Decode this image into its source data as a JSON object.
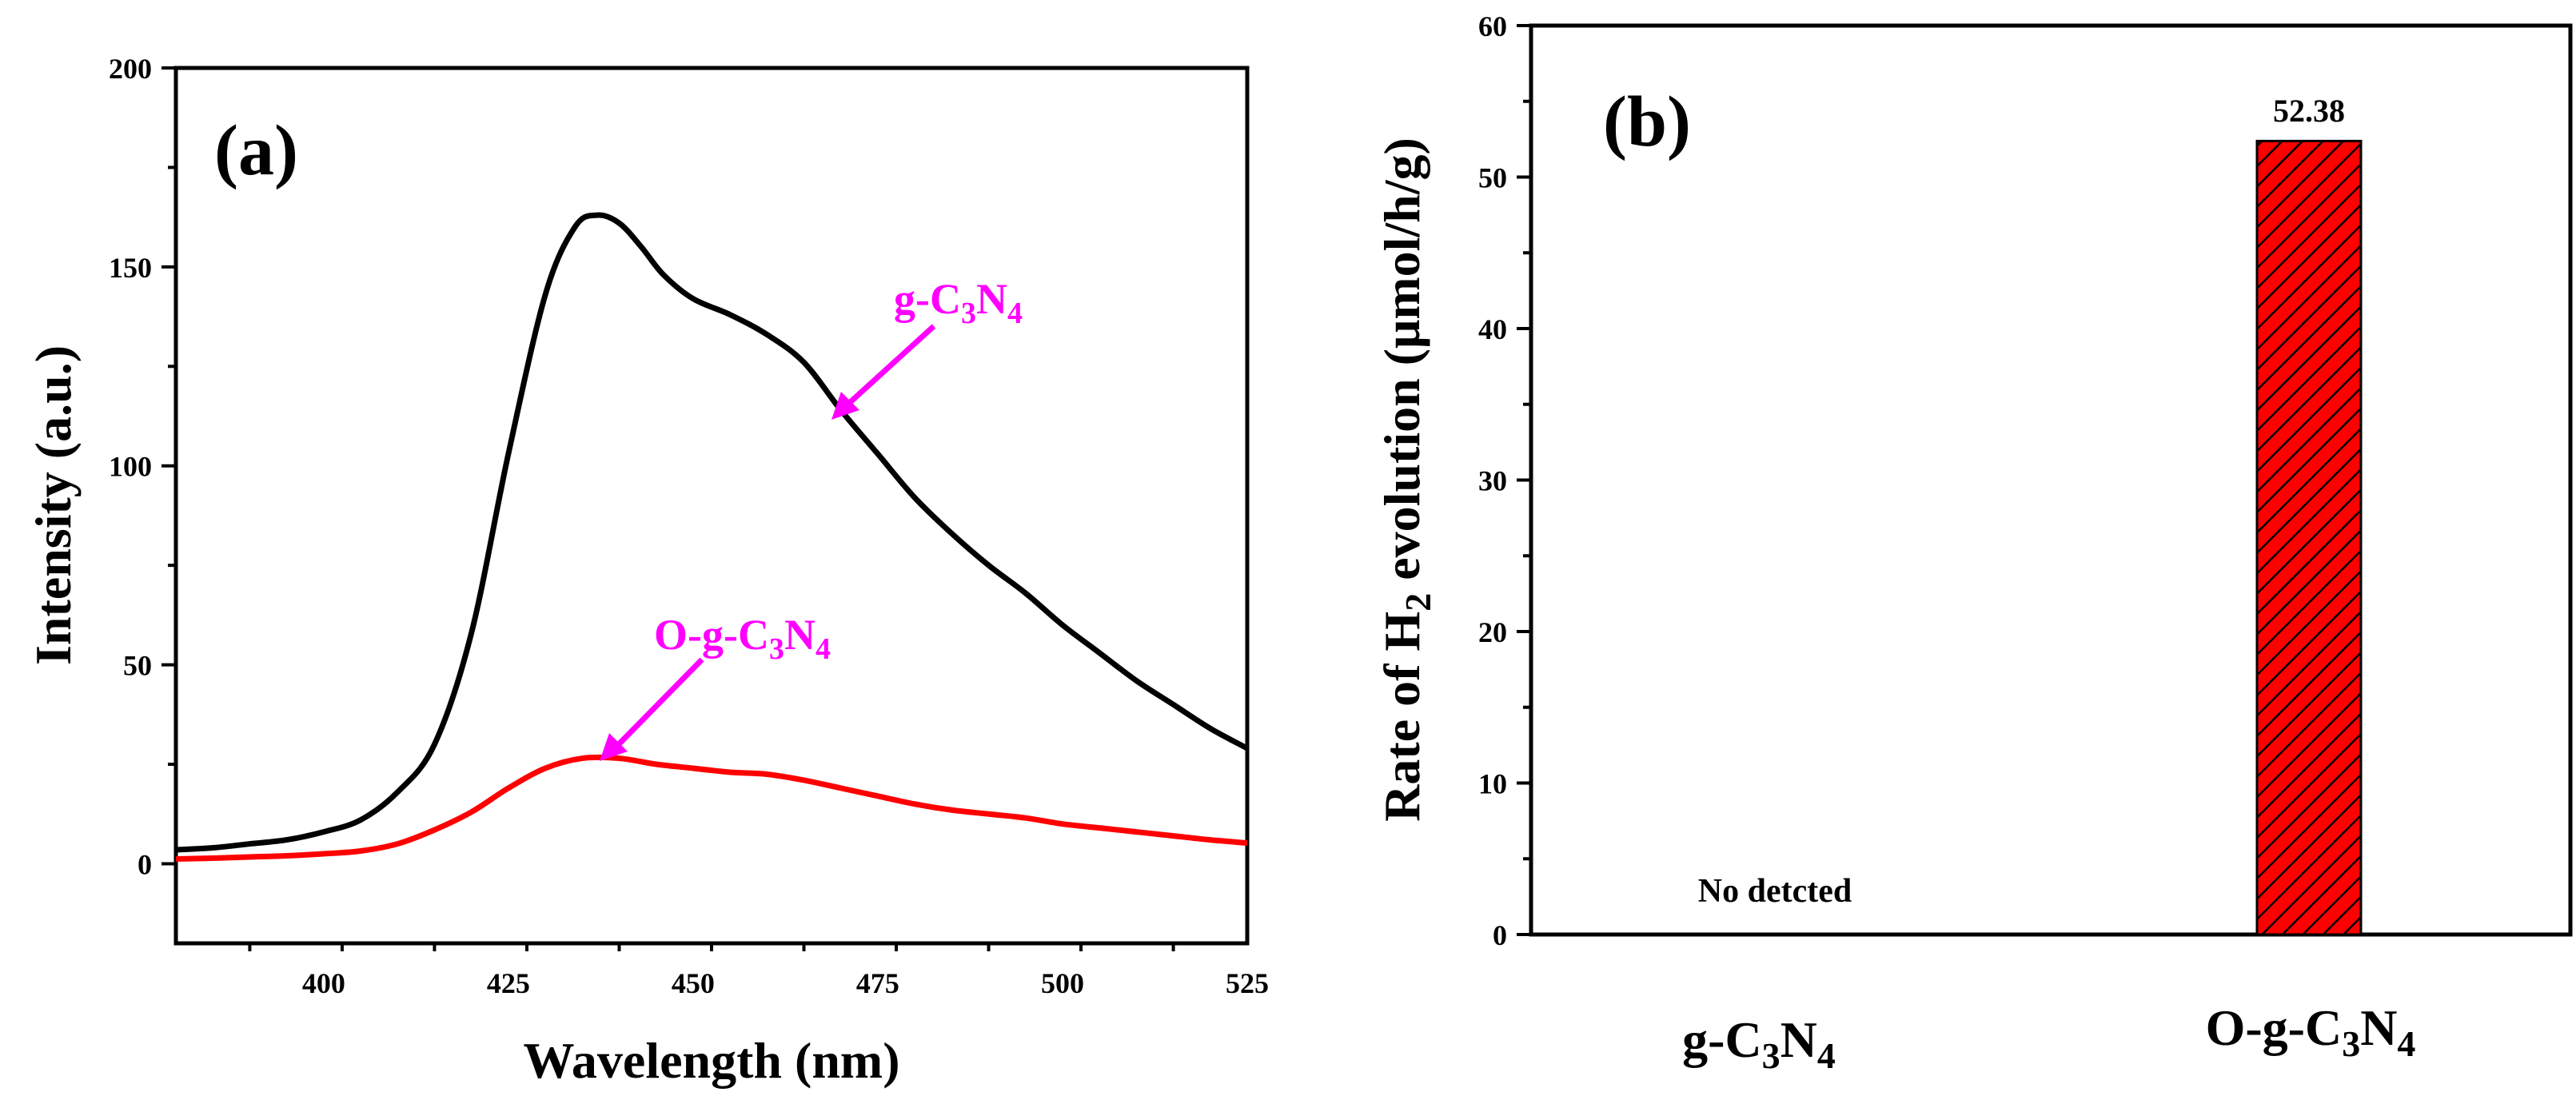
{
  "colors": {
    "axis": "#000000",
    "series_black": "#000000",
    "series_red": "#ff0000",
    "annotation": "#ff00ff",
    "bar_fill": "#ff0000",
    "bar_hatch": "#000000"
  },
  "panel_a": {
    "label": "(a)",
    "annotations": {
      "gc3n4": {
        "prefix": "g-C",
        "sub1": "3",
        "mid": "N",
        "sub2": "4"
      },
      "ogc3n4": {
        "prefix": "O-g-C",
        "sub1": "3",
        "mid": "N",
        "sub2": "4"
      }
    }
  },
  "panel_b": {
    "label": "(b)",
    "ylabel": {
      "pre": "Rate of H",
      "sub": "2",
      "post": " evolution (μmol/h/g)"
    },
    "categories": [
      {
        "prefix": "g-C",
        "sub1": "3",
        "mid": "N",
        "sub2": "4"
      },
      {
        "prefix": "O-g-C",
        "sub1": "3",
        "mid": "N",
        "sub2": "4"
      }
    ],
    "value_label": "52.38",
    "no_detect_label": "No detcted"
  },
  "chart_data": [
    {
      "type": "line",
      "title": "",
      "xlabel": "Wavelength (nm)",
      "ylabel": "Intensity (a.u.)",
      "xlim": [
        380,
        525
      ],
      "ylim": [
        -20,
        200
      ],
      "xticks": [
        400,
        425,
        450,
        475,
        500,
        525
      ],
      "yticks": [
        0,
        50,
        100,
        150,
        200
      ],
      "series": [
        {
          "name": "g-C3N4",
          "color": "#000000",
          "x": [
            380,
            385,
            390,
            395,
            400,
            405,
            410,
            415,
            420,
            425,
            430,
            434,
            437,
            440,
            443,
            446,
            450,
            455,
            460,
            465,
            470,
            475,
            480,
            485,
            490,
            495,
            500,
            505,
            510,
            515,
            520,
            525
          ],
          "y": [
            3.5,
            4,
            5,
            6,
            8,
            11,
            18,
            30,
            58,
            103,
            143,
            160,
            163,
            161,
            155,
            148,
            142,
            138,
            133,
            126,
            114,
            103,
            92,
            83,
            75,
            68,
            60,
            53,
            46,
            40,
            34,
            29
          ]
        },
        {
          "name": "O-g-C3N4",
          "color": "#ff0000",
          "x": [
            380,
            385,
            390,
            395,
            400,
            405,
            410,
            415,
            420,
            425,
            430,
            435,
            440,
            445,
            450,
            455,
            460,
            465,
            470,
            475,
            480,
            485,
            490,
            495,
            500,
            505,
            510,
            515,
            520,
            525
          ],
          "y": [
            1.2,
            1.4,
            1.7,
            2,
            2.5,
            3.2,
            5,
            8.5,
            13,
            19,
            24,
            26.5,
            26.5,
            25,
            24,
            23,
            22.5,
            21,
            19,
            17,
            15,
            13.5,
            12.5,
            11.5,
            10,
            9,
            8,
            7,
            6,
            5.2
          ]
        }
      ],
      "annotations": [
        "g-C3N4",
        "O-g-C3N4"
      ]
    },
    {
      "type": "bar",
      "title": "",
      "xlabel": "",
      "ylabel": "Rate of H2 evolution (μmol/h/g)",
      "ylim": [
        0,
        60
      ],
      "yticks": [
        0,
        10,
        20,
        30,
        40,
        50,
        60
      ],
      "categories": [
        "g-C3N4",
        "O-g-C3N4"
      ],
      "values": [
        0,
        52.38
      ],
      "data_labels": [
        "No detcted",
        "52.38"
      ]
    }
  ]
}
